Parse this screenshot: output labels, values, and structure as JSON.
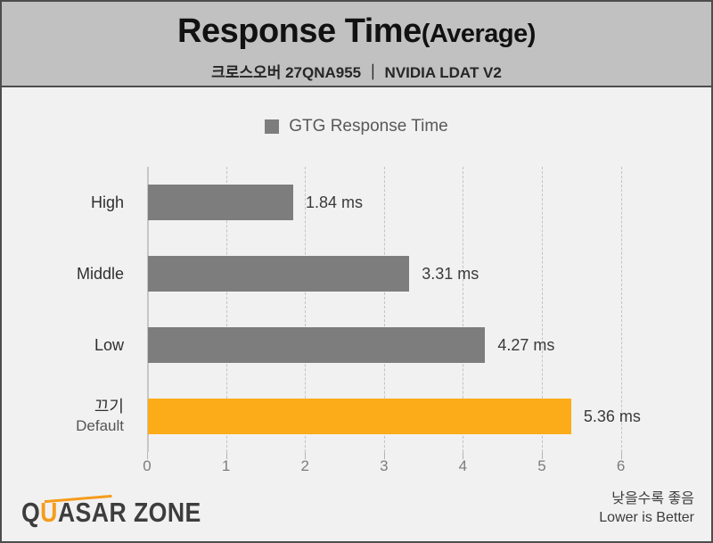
{
  "header": {
    "title": "Response Time",
    "title_suffix": "(Average)",
    "subtitle": "크로스오버 27QNA955 ｜ NVIDIA LDAT V2"
  },
  "legend": {
    "label": "GTG Response Time",
    "swatch_color": "#7d7d7d"
  },
  "chart_data": {
    "type": "bar",
    "orientation": "horizontal",
    "title": "Response Time(Average)",
    "subtitle": "크로스오버 27QNA955 | NVIDIA LDAT V2",
    "legend": [
      "GTG Response Time"
    ],
    "legend_position": "top",
    "grid": true,
    "grid_style": "dashed-vertical",
    "xlim": [
      0,
      6.26
    ],
    "x_ticks": [
      0,
      1,
      2,
      3,
      4,
      5,
      6
    ],
    "unit": "ms",
    "bars": [
      {
        "category": "High",
        "sublabel": "",
        "value": 1.84,
        "value_label": "1.84 ms",
        "color": "#7d7d7d"
      },
      {
        "category": "Middle",
        "sublabel": "",
        "value": 3.31,
        "value_label": "3.31 ms",
        "color": "#7d7d7d"
      },
      {
        "category": "Low",
        "sublabel": "",
        "value": 4.27,
        "value_label": "4.27 ms",
        "color": "#7d7d7d"
      },
      {
        "category": "끄기",
        "sublabel": "Default",
        "value": 5.36,
        "value_label": "5.36 ms",
        "color": "#fbac18"
      }
    ]
  },
  "footer": {
    "logo_text": "QUASAR ZONE",
    "logo_part_q": "Q",
    "logo_part_u": "U",
    "logo_part_rest": "ASAR ZONE",
    "note_korean": "낮을수록 좋음",
    "note_english": "Lower is Better"
  },
  "colors": {
    "header_bg": "#c1c1c1",
    "body_bg": "#f1f1f1",
    "frame_border": "#4d4d4d",
    "bar_gray": "#7d7d7d",
    "bar_orange": "#fbac18",
    "gridline": "#c3c3c3",
    "tick_label": "#7c7c7c",
    "logo_orange": "#f59c1c",
    "logo_dark": "#3d3d3d"
  }
}
